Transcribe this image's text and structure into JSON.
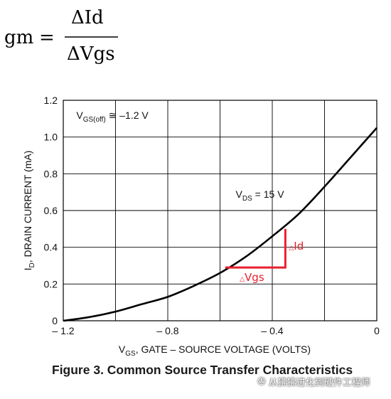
{
  "formula": {
    "lhs": "gm",
    "equals": "=",
    "numerator": "ΔId",
    "denominator": "ΔVgs"
  },
  "chart_data": {
    "type": "line",
    "title": "",
    "xlabel": {
      "main": "V",
      "sub": "GS",
      "rest": ", GATE – SOURCE VOLTAGE (VOLTS)"
    },
    "ylabel": {
      "main": "I",
      "sub": "D",
      "rest": ", DRAIN CURRENT (mA)"
    },
    "xlim": [
      -1.2,
      0
    ],
    "ylim": [
      0,
      1.2
    ],
    "xticks": [
      -1.2,
      -0.8,
      -0.4,
      0
    ],
    "xtick_labels": [
      "– 1.2",
      "– 0.8",
      "– 0.4",
      "0"
    ],
    "x_gridlines": [
      -1.2,
      -1.0,
      -0.8,
      -0.6,
      -0.4,
      -0.2,
      0
    ],
    "yticks": [
      0,
      0.2,
      0.4,
      0.6,
      0.8,
      1.0,
      1.2
    ],
    "ytick_labels": [
      "0",
      "0.2",
      "0.4",
      "0.6",
      "0.8",
      "1.0",
      "1.2"
    ],
    "grid": true,
    "series": [
      {
        "name": "",
        "color": "#000000",
        "x": [
          -1.2,
          -1.1,
          -1.0,
          -0.9,
          -0.8,
          -0.7,
          -0.6,
          -0.5,
          -0.4,
          -0.3,
          -0.2,
          -0.1,
          0
        ],
        "y": [
          0,
          0.02,
          0.05,
          0.09,
          0.13,
          0.19,
          0.26,
          0.35,
          0.46,
          0.58,
          0.73,
          0.89,
          1.05
        ]
      }
    ],
    "annotations": [
      {
        "main": "V",
        "sub": "GS(off)",
        "rest": " ≅ –1.2 V",
        "x": -1.15,
        "y": 1.1
      },
      {
        "main": "V",
        "sub": "DS",
        "rest": " = 15 V",
        "x": -0.54,
        "y": 0.67
      }
    ],
    "delta_triangle": {
      "color": "#e8202e",
      "x_start": -0.58,
      "x_end": -0.35,
      "y_base": 0.29,
      "y_top": 0.5,
      "dx_label": "Vgs",
      "dy_label": "Id"
    }
  },
  "caption": "Figure 3. Common Source Transfer Characteristics",
  "watermark": "从狒狒进化到硬件工程师"
}
